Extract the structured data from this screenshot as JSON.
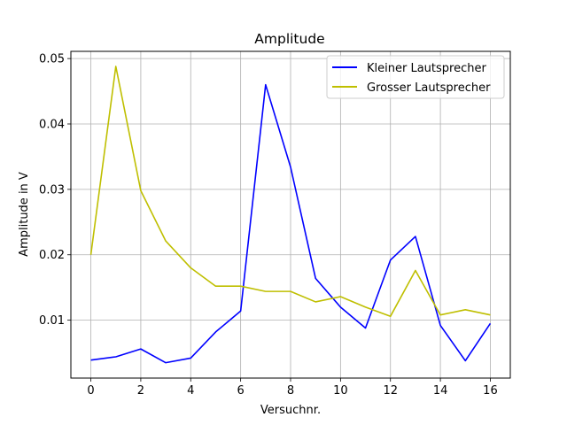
{
  "chart_data": {
    "type": "line",
    "title": "Amplitude",
    "xlabel": "Versuchnr.",
    "ylabel": "Amplitude in V",
    "xlim": [
      -0.8,
      16.8
    ],
    "ylim": [
      0.00115,
      0.0511
    ],
    "xticks": [
      0,
      2,
      4,
      6,
      8,
      10,
      12,
      14,
      16
    ],
    "yticks": [
      0.01,
      0.02,
      0.03,
      0.04,
      0.05
    ],
    "ytick_labels": [
      "0.01",
      "0.02",
      "0.03",
      "0.04",
      "0.05"
    ],
    "grid": true,
    "legend_position": "upper right",
    "x": [
      0,
      1,
      2,
      3,
      4,
      5,
      6,
      7,
      8,
      9,
      10,
      11,
      12,
      13,
      14,
      15,
      16
    ],
    "series": [
      {
        "name": "Kleiner Lautsprecher",
        "color": "#0000ff",
        "values": [
          0.0039,
          0.0044,
          0.0056,
          0.0035,
          0.0042,
          0.0082,
          0.0114,
          0.046,
          0.0334,
          0.0164,
          0.012,
          0.0088,
          0.0192,
          0.0228,
          0.0092,
          0.0038,
          0.0095
        ]
      },
      {
        "name": "Grosser Lautsprecher",
        "color": "#bfbf00",
        "values": [
          0.02,
          0.0488,
          0.0298,
          0.0221,
          0.018,
          0.0152,
          0.0152,
          0.0144,
          0.0144,
          0.0128,
          0.0136,
          0.012,
          0.0106,
          0.0176,
          0.0108,
          0.0116,
          0.0108
        ]
      }
    ]
  }
}
